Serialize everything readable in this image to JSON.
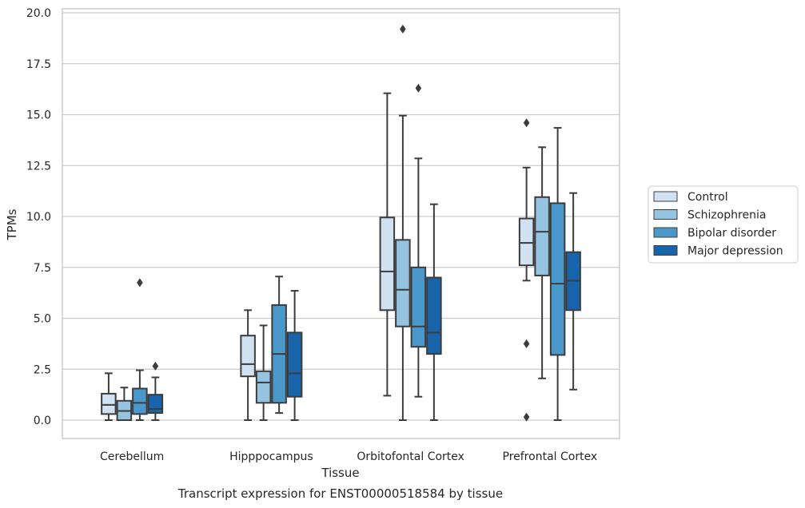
{
  "chart_data": {
    "type": "boxplot",
    "title": "Transcript expression for ENST00000518584 by tissue",
    "xlabel": "Tissue",
    "ylabel": "TPMs",
    "ylim": [
      -0.9,
      20.2
    ],
    "yticks": [
      "0.0",
      "2.5",
      "5.0",
      "7.5",
      "10.0",
      "12.5",
      "15.0",
      "17.5",
      "20.0"
    ],
    "grid": true,
    "legend_position": "right",
    "categories": [
      "Cerebellum",
      "Hipppocampus",
      "Orbitofontal Cortex",
      "Prefrontal Cortex"
    ],
    "series": [
      {
        "name": "Control",
        "color": "#d0e1f2",
        "boxes": [
          {
            "whisker_low": 0.0,
            "q1": 0.3,
            "median": 0.75,
            "q3": 1.3,
            "whisker_high": 2.3,
            "outliers": []
          },
          {
            "whisker_low": 0.0,
            "q1": 2.15,
            "median": 2.75,
            "q3": 4.15,
            "whisker_high": 5.4,
            "outliers": []
          },
          {
            "whisker_low": 1.2,
            "q1": 5.4,
            "median": 7.3,
            "q3": 9.95,
            "whisker_high": 16.05,
            "outliers": []
          },
          {
            "whisker_low": 6.85,
            "q1": 7.6,
            "median": 8.7,
            "q3": 9.9,
            "whisker_high": 12.4,
            "outliers": [
              14.6,
              3.75,
              0.15
            ]
          }
        ]
      },
      {
        "name": "Schizophrenia",
        "color": "#94c4df",
        "boxes": [
          {
            "whisker_low": 0.0,
            "q1": 0.0,
            "median": 0.45,
            "q3": 0.95,
            "whisker_high": 1.6,
            "outliers": []
          },
          {
            "whisker_low": 0.0,
            "q1": 0.85,
            "median": 1.85,
            "q3": 2.4,
            "whisker_high": 4.65,
            "outliers": []
          },
          {
            "whisker_low": 0.0,
            "q1": 4.6,
            "median": 6.4,
            "q3": 8.85,
            "whisker_high": 14.95,
            "outliers": [
              19.2
            ]
          },
          {
            "whisker_low": 2.05,
            "q1": 7.1,
            "median": 9.25,
            "q3": 10.95,
            "whisker_high": 13.4,
            "outliers": []
          }
        ]
      },
      {
        "name": "Bipolar disorder",
        "color": "#4a98c9",
        "boxes": [
          {
            "whisker_low": 0.0,
            "q1": 0.3,
            "median": 0.85,
            "q3": 1.55,
            "whisker_high": 2.45,
            "outliers": [
              6.75
            ]
          },
          {
            "whisker_low": 0.35,
            "q1": 0.85,
            "median": 3.25,
            "q3": 5.65,
            "whisker_high": 7.05,
            "outliers": []
          },
          {
            "whisker_low": 1.15,
            "q1": 3.6,
            "median": 4.6,
            "q3": 7.5,
            "whisker_high": 12.85,
            "outliers": [
              16.3
            ]
          },
          {
            "whisker_low": 0.0,
            "q1": 3.2,
            "median": 6.7,
            "q3": 10.65,
            "whisker_high": 14.35,
            "outliers": []
          }
        ]
      },
      {
        "name": "Major depression",
        "color": "#1764ab",
        "boxes": [
          {
            "whisker_low": 0.0,
            "q1": 0.35,
            "median": 0.55,
            "q3": 1.25,
            "whisker_high": 2.1,
            "outliers": [
              2.65
            ]
          },
          {
            "whisker_low": 0.0,
            "q1": 1.15,
            "median": 2.3,
            "q3": 4.3,
            "whisker_high": 6.35,
            "outliers": []
          },
          {
            "whisker_low": 0.0,
            "q1": 3.25,
            "median": 4.3,
            "q3": 7.0,
            "whisker_high": 10.6,
            "outliers": []
          },
          {
            "whisker_low": 1.5,
            "q1": 5.4,
            "median": 6.85,
            "q3": 8.25,
            "whisker_high": 11.15,
            "outliers": []
          }
        ]
      }
    ]
  }
}
